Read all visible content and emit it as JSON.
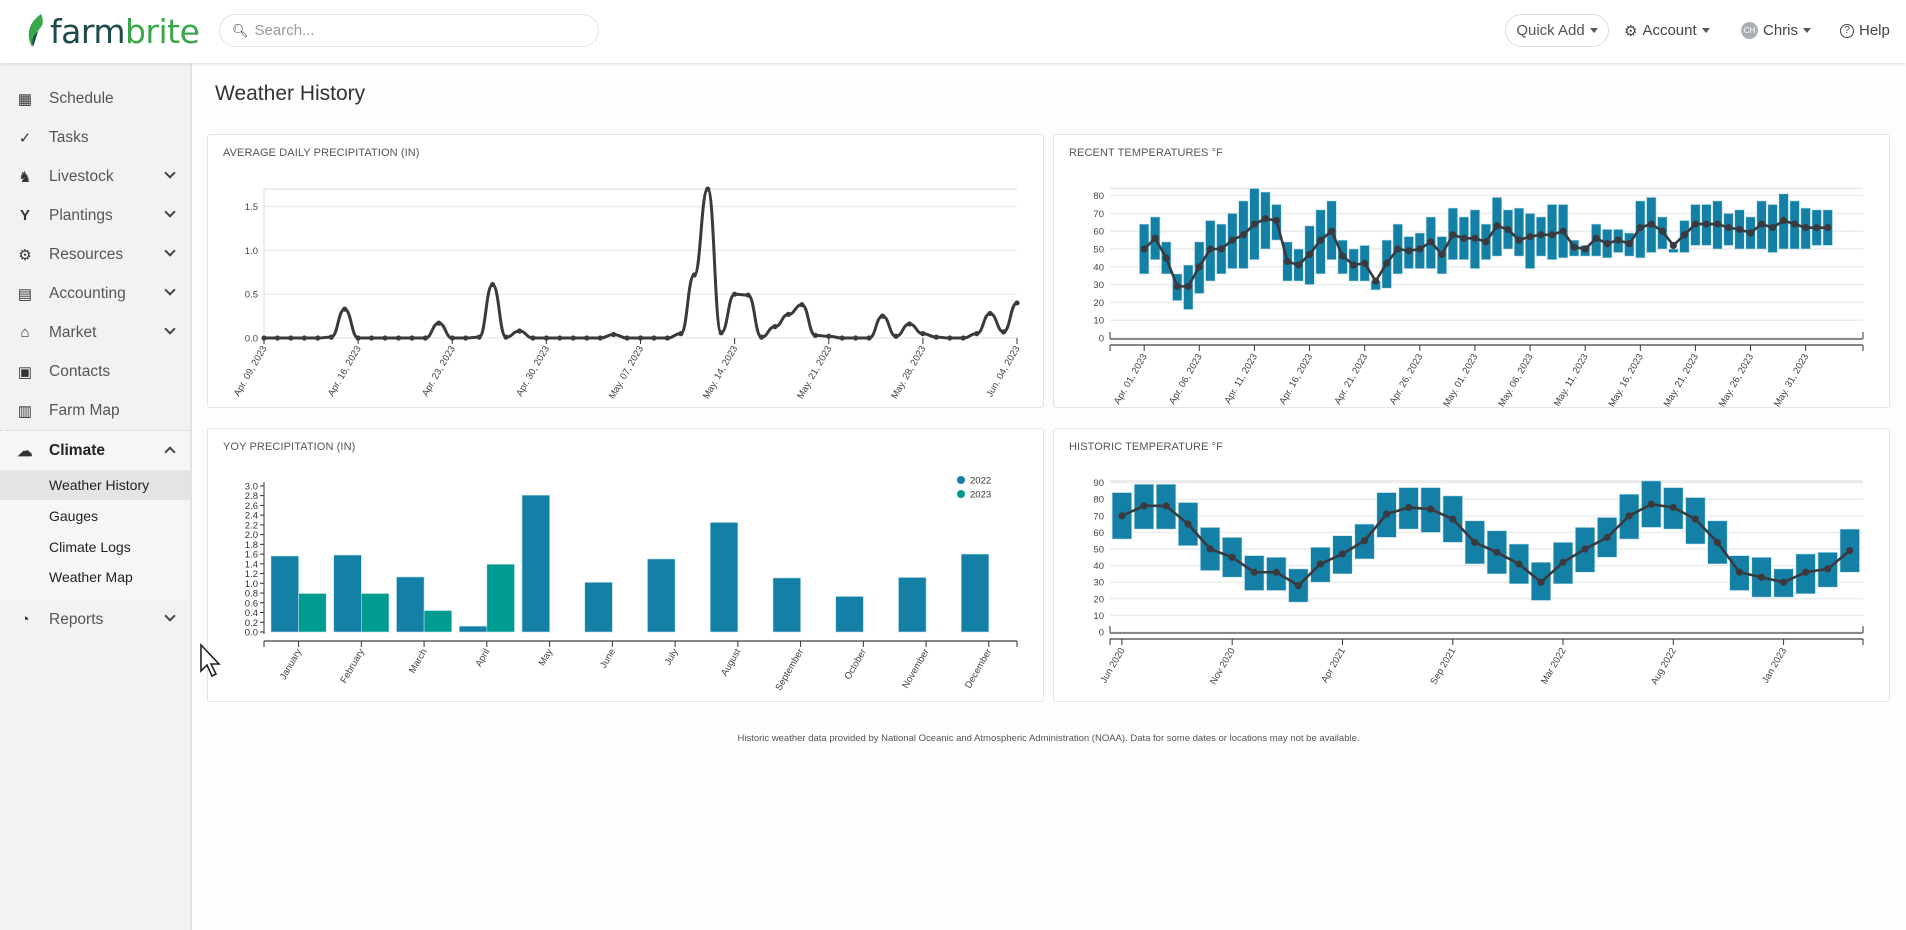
{
  "header": {
    "logo": "farmbrite",
    "search_placeholder": "Search...",
    "quick_add": "Quick Add",
    "account": "Account",
    "user": "Chris",
    "user_initials": "CH",
    "help": "Help"
  },
  "sidebar": {
    "items": [
      {
        "label": "Schedule"
      },
      {
        "label": "Tasks"
      },
      {
        "label": "Livestock"
      },
      {
        "label": "Plantings"
      },
      {
        "label": "Resources"
      },
      {
        "label": "Accounting"
      },
      {
        "label": "Market"
      },
      {
        "label": "Contacts"
      },
      {
        "label": "Farm Map"
      }
    ],
    "climate": {
      "label": "Climate",
      "sub": [
        "Weather History",
        "Gauges",
        "Climate Logs",
        "Weather Map"
      ]
    },
    "reports": "Reports"
  },
  "page": {
    "title": "Weather History",
    "footer": "Historic weather data provided by National Oceanic and Atmospheric Administration (NOAA). Data for some dates or locations may not be available."
  },
  "colors": {
    "bar2022": "#1580a6",
    "bar2023": "#009b91",
    "line": "#3a3a3e",
    "grid": "#ececec"
  },
  "chart_data": [
    {
      "type": "line",
      "title": "AVERAGE DAILY PRECIPITATION (IN)",
      "xlabel": "",
      "ylabel": "",
      "ylim": [
        0,
        1.7
      ],
      "y_ticks": [
        "0.0",
        "0.5",
        "1.0",
        "1.5"
      ],
      "x_ticks": [
        {
          "i": 0,
          "label": "Apr. 09, 2023"
        },
        {
          "i": 7,
          "label": "Apr. 16, 2023"
        },
        {
          "i": 14,
          "label": "Apr. 23, 2023"
        },
        {
          "i": 21,
          "label": "Apr. 30, 2023"
        },
        {
          "i": 28,
          "label": "May. 07, 2023"
        },
        {
          "i": 35,
          "label": "May. 14, 2023"
        },
        {
          "i": 42,
          "label": "May. 21, 2023"
        },
        {
          "i": 49,
          "label": "May. 28, 2023"
        },
        {
          "i": 56,
          "label": "Jun. 04, 2023"
        }
      ],
      "values": [
        0,
        0,
        0,
        0,
        0,
        0.01,
        0.33,
        0,
        0,
        0,
        0,
        0,
        0,
        0.17,
        0,
        0,
        0.01,
        0.61,
        0.01,
        0.08,
        0,
        0,
        0,
        0,
        0,
        0,
        0.04,
        0,
        0,
        0,
        0,
        0.05,
        0.72,
        1.7,
        0.06,
        0.5,
        0.49,
        0.01,
        0.13,
        0.27,
        0.38,
        0.03,
        0.02,
        0,
        0,
        0,
        0.25,
        0.02,
        0.16,
        0.05,
        0.01,
        0,
        0,
        0.05,
        0.28,
        0.07,
        0.4
      ]
    },
    {
      "type": "range-bar",
      "title": "RECENT TEMPERATURES °F",
      "ylim": [
        0,
        84
      ],
      "y_ticks": [
        "0",
        "10",
        "20",
        "30",
        "40",
        "50",
        "60",
        "70",
        "80"
      ],
      "x_ticks": [
        {
          "i": 0,
          "label": "Apr. 01, 2023"
        },
        {
          "i": 5,
          "label": "Apr. 06, 2023"
        },
        {
          "i": 10,
          "label": "Apr. 11, 2023"
        },
        {
          "i": 15,
          "label": "Apr. 16, 2023"
        },
        {
          "i": 20,
          "label": "Apr. 21, 2023"
        },
        {
          "i": 25,
          "label": "Apr. 26, 2023"
        },
        {
          "i": 30,
          "label": "May. 01, 2023"
        },
        {
          "i": 35,
          "label": "May. 06, 2023"
        },
        {
          "i": 40,
          "label": "May. 11, 2023"
        },
        {
          "i": 45,
          "label": "May. 16, 2023"
        },
        {
          "i": 50,
          "label": "May. 21, 2023"
        },
        {
          "i": 55,
          "label": "May. 26, 2023"
        },
        {
          "i": 60,
          "label": "May. 31, 2023"
        }
      ],
      "low": [
        36,
        44,
        36,
        21,
        16,
        25,
        32,
        36,
        39,
        39,
        44,
        50,
        55,
        32,
        32,
        30,
        36,
        44,
        36,
        32,
        32,
        27,
        28,
        36,
        39,
        39,
        39,
        36,
        44,
        44,
        39,
        44,
        46,
        50,
        46,
        39,
        46,
        44,
        45,
        46,
        46,
        46,
        45,
        48,
        46,
        45,
        48,
        50,
        48,
        48,
        52,
        52,
        50,
        52,
        50,
        50,
        50,
        48,
        50,
        50,
        50,
        52,
        52
      ],
      "high": [
        64,
        68,
        54,
        36,
        41,
        54,
        66,
        64,
        70,
        77,
        84,
        82,
        75,
        54,
        50,
        63,
        72,
        77,
        55,
        50,
        52,
        32,
        55,
        64,
        57,
        59,
        68,
        57,
        73,
        68,
        72,
        64,
        79,
        72,
        73,
        70,
        68,
        75,
        75,
        55,
        52,
        64,
        61,
        61,
        59,
        77,
        79,
        68,
        50,
        66,
        75,
        75,
        77,
        70,
        72,
        68,
        77,
        75,
        81,
        77,
        73,
        72,
        72
      ],
      "avg": [
        50,
        56,
        45,
        29,
        29,
        40,
        50,
        50,
        55,
        58,
        64,
        67,
        66,
        43,
        41,
        47,
        55,
        60,
        46,
        41,
        42,
        32,
        42,
        50,
        49,
        50,
        54,
        47,
        58,
        56,
        56,
        54,
        63,
        61,
        55,
        57,
        58,
        58,
        60,
        51,
        50,
        56,
        53,
        55,
        53,
        62,
        64,
        60,
        52,
        58,
        64,
        64,
        64,
        62,
        61,
        59,
        64,
        62,
        66,
        64,
        62,
        62,
        62
      ]
    },
    {
      "type": "bar",
      "title": "YOY PRECIPITATION (IN)",
      "ylim": [
        0,
        3.0
      ],
      "y_ticks": [
        "0.0",
        "0.2",
        "0.4",
        "0.6",
        "0.8",
        "1.0",
        "1.2",
        "1.4",
        "1.6",
        "1.8",
        "2.0",
        "2.2",
        "2.4",
        "2.6",
        "2.8",
        "3.0"
      ],
      "categories": [
        "January",
        "February",
        "March",
        "April",
        "May",
        "June",
        "July",
        "August",
        "September",
        "October",
        "November",
        "December"
      ],
      "legend": {
        "position": "top-right"
      },
      "series": [
        {
          "name": "2022",
          "values": [
            1.56,
            1.58,
            1.13,
            0.12,
            2.81,
            1.02,
            1.5,
            2.25,
            1.11,
            0.73,
            1.12,
            1.6
          ]
        },
        {
          "name": "2023",
          "values": [
            0.79,
            0.79,
            0.44,
            1.39,
            null,
            null,
            null,
            null,
            null,
            null,
            null,
            null
          ]
        }
      ]
    },
    {
      "type": "range-bar",
      "title": "HISTORIC TEMPERATURE °F",
      "ylim": [
        0,
        91
      ],
      "y_ticks": [
        "0",
        "10",
        "20",
        "30",
        "40",
        "50",
        "60",
        "70",
        "80",
        "90"
      ],
      "x_ticks": [
        {
          "i": 0,
          "label": "Jun 2020"
        },
        {
          "i": 5,
          "label": "Nov 2020"
        },
        {
          "i": 10,
          "label": "Apr 2021"
        },
        {
          "i": 15,
          "label": "Sep 2021"
        },
        {
          "i": 20,
          "label": "Mar 2022"
        },
        {
          "i": 25,
          "label": "Aug 2022"
        },
        {
          "i": 30,
          "label": "Jan 2023"
        }
      ],
      "low": [
        56,
        62,
        62,
        52,
        37,
        33,
        25,
        25,
        18,
        30,
        35,
        44,
        57,
        62,
        60,
        54,
        41,
        35,
        29,
        19,
        29,
        36,
        45,
        56,
        63,
        62,
        53,
        41,
        25,
        21,
        21,
        23,
        27,
        36
      ],
      "high": [
        84,
        89,
        89,
        78,
        63,
        57,
        46,
        45,
        38,
        51,
        58,
        65,
        84,
        87,
        87,
        82,
        67,
        61,
        53,
        42,
        54,
        63,
        69,
        83,
        91,
        87,
        81,
        67,
        46,
        45,
        38,
        47,
        48,
        62
      ],
      "avg": [
        70,
        76,
        76,
        65,
        50,
        45,
        36,
        36,
        28,
        41,
        47,
        55,
        71,
        75,
        74,
        68,
        54,
        48,
        41,
        30,
        42,
        50,
        57,
        70,
        77,
        75,
        68,
        54,
        36,
        33,
        30,
        36,
        38,
        49
      ]
    }
  ]
}
